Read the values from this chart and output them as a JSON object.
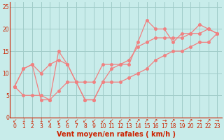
{
  "xlabel": "Vent moyen/en rafales ( km/h )",
  "background_color": "#c8ecea",
  "line_color": "#f08080",
  "grid_color": "#a0ccc8",
  "ylim": [
    0,
    26
  ],
  "xlim": [
    -0.5,
    23.5
  ],
  "yticks": [
    0,
    5,
    10,
    15,
    20,
    25
  ],
  "xticks": [
    0,
    1,
    2,
    3,
    4,
    5,
    6,
    7,
    8,
    9,
    10,
    11,
    12,
    13,
    14,
    15,
    16,
    17,
    18,
    19,
    20,
    21,
    22,
    23
  ],
  "series": [
    {
      "x": [
        0,
        1,
        2,
        3,
        4,
        5,
        6,
        7,
        8,
        9,
        10,
        11,
        12,
        13,
        14,
        15,
        16,
        17,
        18,
        19,
        20,
        21,
        22,
        23
      ],
      "y": [
        7,
        11,
        12,
        4,
        4,
        15,
        12,
        8,
        4,
        4,
        8,
        11,
        12,
        12,
        17,
        22,
        20,
        20,
        17,
        19,
        19,
        21,
        20,
        19
      ]
    },
    {
      "x": [
        0,
        1,
        2,
        3,
        4,
        5,
        6,
        7,
        8,
        9,
        10,
        11,
        12,
        13,
        14,
        15,
        16,
        17,
        18,
        19,
        20,
        21,
        22,
        23
      ],
      "y": [
        7,
        11,
        12,
        10,
        12,
        13,
        12,
        8,
        8,
        8,
        12,
        12,
        12,
        13,
        16,
        17,
        18,
        18,
        18,
        18,
        19,
        19,
        20,
        19
      ]
    },
    {
      "x": [
        0,
        1,
        2,
        3,
        4,
        5,
        6,
        7,
        8,
        9,
        10,
        11,
        12,
        13,
        14,
        15,
        16,
        17,
        18,
        19,
        20,
        21,
        22,
        23
      ],
      "y": [
        7,
        5,
        5,
        5,
        4,
        6,
        8,
        8,
        4,
        4,
        8,
        8,
        8,
        9,
        10,
        11,
        13,
        14,
        15,
        15,
        16,
        17,
        17,
        19
      ]
    }
  ],
  "arrows": [
    "↙",
    "↓",
    "↓",
    "↓",
    "↙",
    "↙",
    "↙",
    "↙",
    "↙",
    "↙",
    "↙",
    "↙",
    "↙",
    "↗",
    "↗",
    "↗",
    "↗",
    "→",
    "↗",
    "→",
    "↗",
    "→",
    "↗",
    "→"
  ],
  "axis_color": "#cc2200",
  "tick_fontsize": 5.5,
  "xlabel_fontsize": 7,
  "marker_size": 2.5
}
